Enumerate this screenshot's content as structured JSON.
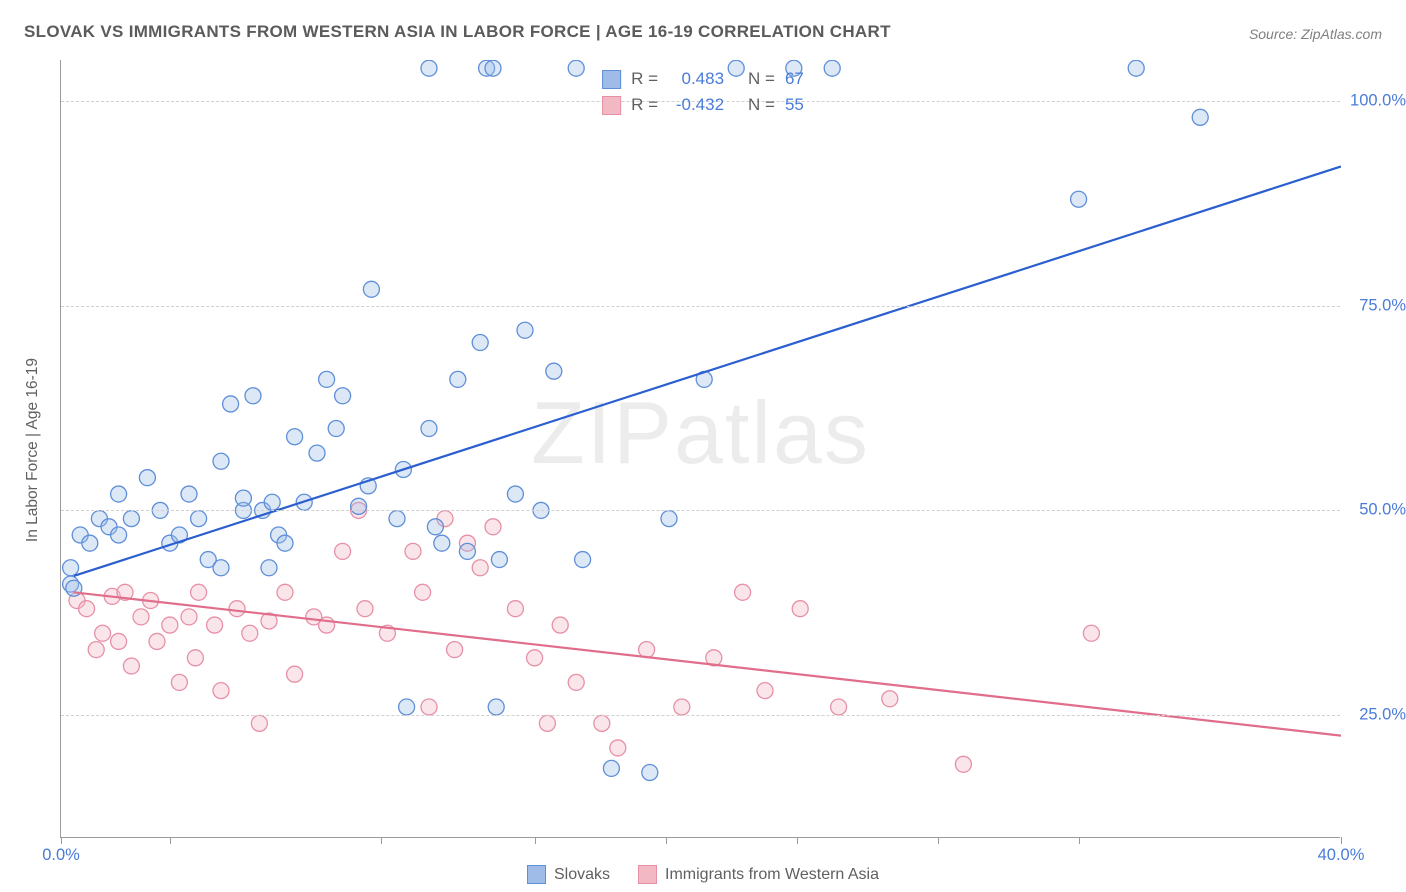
{
  "title": "SLOVAK VS IMMIGRANTS FROM WESTERN ASIA IN LABOR FORCE | AGE 16-19 CORRELATION CHART",
  "source": "Source: ZipAtlas.com",
  "ylabel": "In Labor Force | Age 16-19",
  "watermark_a": "ZIP",
  "watermark_b": "atlas",
  "chart": {
    "type": "scatter-with-regression",
    "background_color": "#ffffff",
    "grid_color": "#d0d0d0",
    "axis_color": "#9a9a9a",
    "xlim": [
      0,
      40
    ],
    "ylim": [
      10,
      105
    ],
    "xtick_positions": [
      0,
      3.4,
      10,
      14.8,
      18.9,
      23.0,
      27.4,
      31.8,
      40
    ],
    "xtick_labels": {
      "0": "0.0%",
      "40": "40.0%"
    },
    "ytick_positions": [
      25,
      50,
      75,
      100
    ],
    "ytick_labels": [
      "25.0%",
      "50.0%",
      "75.0%",
      "100.0%"
    ],
    "label_fontsize": 16.5,
    "label_color": "#4a7bd8",
    "title_fontsize": 17,
    "title_color": "#5b5b5b",
    "marker_radius": 8,
    "marker_fill_opacity": 0.35,
    "marker_stroke_width": 1.3,
    "line_width": 2.2,
    "series": {
      "slovaks": {
        "label": "Slovaks",
        "color_fill": "#9fbce8",
        "color_stroke": "#5f8fd8",
        "line_color": "#2b5fcf",
        "R": "0.483",
        "N": "67",
        "regression": {
          "x1": 0.4,
          "y1": 42,
          "x2": 40,
          "y2": 92
        },
        "points": [
          [
            0.3,
            41
          ],
          [
            0.3,
            43
          ],
          [
            0.4,
            40.5
          ],
          [
            0.6,
            47
          ],
          [
            0.9,
            46
          ],
          [
            1.2,
            49
          ],
          [
            1.5,
            48
          ],
          [
            1.8,
            47
          ],
          [
            1.8,
            52
          ],
          [
            2.2,
            49
          ],
          [
            2.7,
            54
          ],
          [
            3.1,
            50
          ],
          [
            3.4,
            46
          ],
          [
            3.7,
            47
          ],
          [
            4.0,
            52
          ],
          [
            4.3,
            49
          ],
          [
            4.6,
            44
          ],
          [
            5.0,
            43
          ],
          [
            5.0,
            56
          ],
          [
            5.3,
            63
          ],
          [
            5.7,
            50
          ],
          [
            5.7,
            51.5
          ],
          [
            6.0,
            64
          ],
          [
            6.3,
            50
          ],
          [
            6.5,
            43
          ],
          [
            6.6,
            51
          ],
          [
            6.8,
            47
          ],
          [
            7.0,
            46
          ],
          [
            7.3,
            59
          ],
          [
            7.6,
            51
          ],
          [
            8.0,
            57
          ],
          [
            8.3,
            66
          ],
          [
            8.6,
            60
          ],
          [
            8.8,
            64
          ],
          [
            9.3,
            50.5
          ],
          [
            9.6,
            53
          ],
          [
            9.7,
            77
          ],
          [
            10.5,
            49
          ],
          [
            10.7,
            55
          ],
          [
            10.8,
            26
          ],
          [
            11.5,
            60
          ],
          [
            11.5,
            104
          ],
          [
            11.7,
            48
          ],
          [
            11.9,
            46
          ],
          [
            12.4,
            66
          ],
          [
            12.7,
            45
          ],
          [
            13.1,
            70.5
          ],
          [
            13.3,
            104
          ],
          [
            13.5,
            104
          ],
          [
            13.6,
            26
          ],
          [
            13.7,
            44
          ],
          [
            14.2,
            52
          ],
          [
            14.5,
            72
          ],
          [
            15.0,
            50
          ],
          [
            15.4,
            67
          ],
          [
            16.1,
            104
          ],
          [
            16.3,
            44
          ],
          [
            17.2,
            18.5
          ],
          [
            18.4,
            18
          ],
          [
            19.0,
            49
          ],
          [
            20.1,
            66
          ],
          [
            21.1,
            104
          ],
          [
            22.9,
            104
          ],
          [
            24.1,
            104
          ],
          [
            31.8,
            88
          ],
          [
            33.6,
            104
          ],
          [
            35.6,
            98
          ]
        ]
      },
      "immigrants": {
        "label": "Immigrants from Western Asia",
        "color_fill": "#f2b8c4",
        "color_stroke": "#e690a6",
        "line_color": "#e06d8a",
        "R": "-0.432",
        "N": "55",
        "regression": {
          "x1": 0.4,
          "y1": 40,
          "x2": 40,
          "y2": 22.5
        },
        "points": [
          [
            0.5,
            39
          ],
          [
            0.8,
            38
          ],
          [
            1.1,
            33
          ],
          [
            1.3,
            35
          ],
          [
            1.6,
            39.5
          ],
          [
            1.8,
            34
          ],
          [
            2.0,
            40
          ],
          [
            2.2,
            31
          ],
          [
            2.5,
            37
          ],
          [
            2.8,
            39
          ],
          [
            3.0,
            34
          ],
          [
            3.4,
            36
          ],
          [
            3.7,
            29
          ],
          [
            4.0,
            37
          ],
          [
            4.2,
            32
          ],
          [
            4.3,
            40
          ],
          [
            4.8,
            36
          ],
          [
            5.0,
            28
          ],
          [
            5.5,
            38
          ],
          [
            5.9,
            35
          ],
          [
            6.2,
            24
          ],
          [
            6.5,
            36.5
          ],
          [
            7.0,
            40
          ],
          [
            7.3,
            30
          ],
          [
            7.9,
            37
          ],
          [
            8.3,
            36
          ],
          [
            8.8,
            45
          ],
          [
            9.3,
            50
          ],
          [
            9.5,
            38
          ],
          [
            10.2,
            35
          ],
          [
            11.0,
            45
          ],
          [
            11.3,
            40
          ],
          [
            11.5,
            26
          ],
          [
            12.0,
            49
          ],
          [
            12.3,
            33
          ],
          [
            12.7,
            46
          ],
          [
            13.1,
            43
          ],
          [
            13.5,
            48
          ],
          [
            14.2,
            38
          ],
          [
            14.8,
            32
          ],
          [
            15.2,
            24
          ],
          [
            15.6,
            36
          ],
          [
            16.1,
            29
          ],
          [
            16.9,
            24
          ],
          [
            17.4,
            21
          ],
          [
            18.3,
            33
          ],
          [
            19.4,
            26
          ],
          [
            20.4,
            32
          ],
          [
            21.3,
            40
          ],
          [
            22.0,
            28
          ],
          [
            23.1,
            38
          ],
          [
            24.3,
            26
          ],
          [
            25.9,
            27
          ],
          [
            28.2,
            19
          ],
          [
            32.2,
            35
          ]
        ]
      }
    }
  },
  "legend_top": {
    "R_label": "R =",
    "N_label": "N ="
  }
}
